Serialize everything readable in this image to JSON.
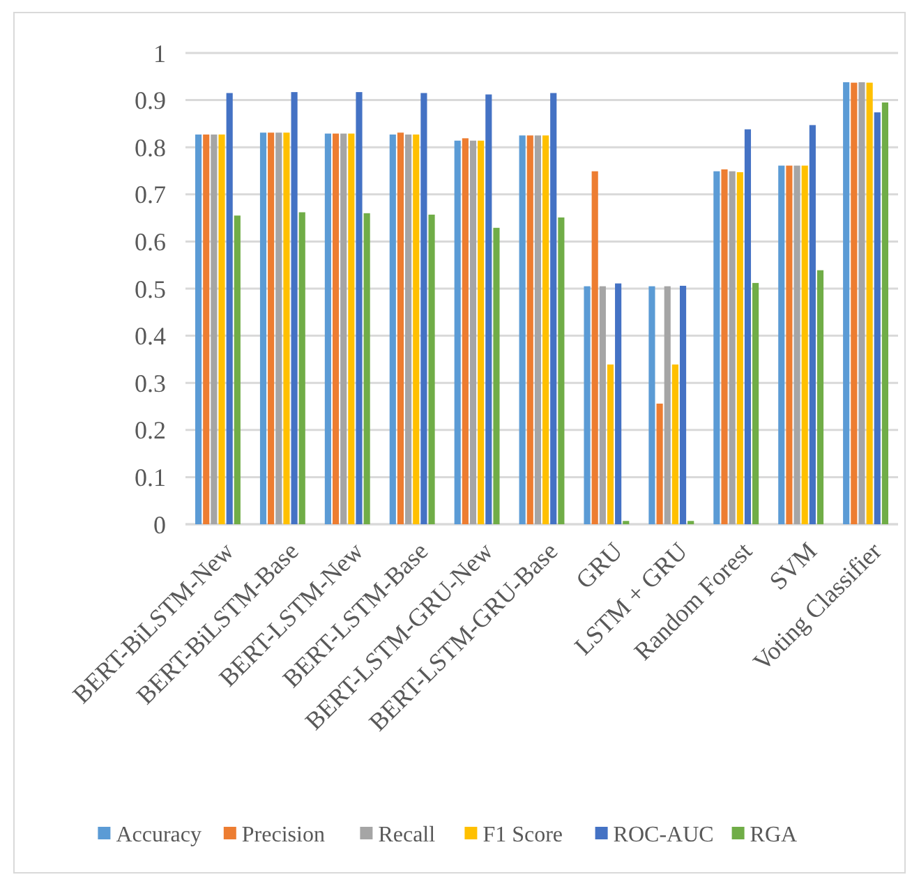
{
  "chart_data": {
    "type": "bar",
    "categories": [
      "BERT-BiLSTM-New",
      "BERT-BiLSTM-Base",
      "BERT-LSTM-New",
      "BERT-LSTM-Base",
      "BERT-LSTM-GRU-New",
      "BERT-LSTM-GRU-Base",
      "GRU",
      "LSTM + GRU",
      "Random Forest",
      "SVM",
      "Voting Classifier"
    ],
    "series": [
      {
        "name": "Accuracy",
        "color": "#5b9bd5",
        "values": [
          0.827,
          0.831,
          0.829,
          0.827,
          0.814,
          0.825,
          0.505,
          0.505,
          0.749,
          0.761,
          0.938
        ]
      },
      {
        "name": "Precision",
        "color": "#ed7d31",
        "values": [
          0.827,
          0.831,
          0.829,
          0.831,
          0.819,
          0.825,
          0.749,
          0.256,
          0.753,
          0.761,
          0.937
        ]
      },
      {
        "name": "Recall",
        "color": "#a5a5a5",
        "values": [
          0.827,
          0.831,
          0.829,
          0.827,
          0.814,
          0.825,
          0.505,
          0.505,
          0.749,
          0.761,
          0.938
        ]
      },
      {
        "name": "F1 Score",
        "color": "#ffc000",
        "values": [
          0.827,
          0.831,
          0.829,
          0.827,
          0.814,
          0.825,
          0.339,
          0.339,
          0.747,
          0.761,
          0.937
        ]
      },
      {
        "name": "ROC-AUC",
        "color": "#4472c4",
        "values": [
          0.915,
          0.917,
          0.917,
          0.915,
          0.912,
          0.915,
          0.511,
          0.506,
          0.838,
          0.847,
          0.874
        ]
      },
      {
        "name": "RGA",
        "color": "#70ad47",
        "values": [
          0.655,
          0.662,
          0.66,
          0.657,
          0.629,
          0.651,
          0.007,
          0.007,
          0.512,
          0.539,
          0.895
        ]
      }
    ],
    "ylim": [
      0,
      1
    ],
    "yticks": [
      0,
      0.1,
      0.2,
      0.3,
      0.4,
      0.5,
      0.6,
      0.7,
      0.8,
      0.9,
      1
    ],
    "grid": "y",
    "legend": "bottom"
  }
}
